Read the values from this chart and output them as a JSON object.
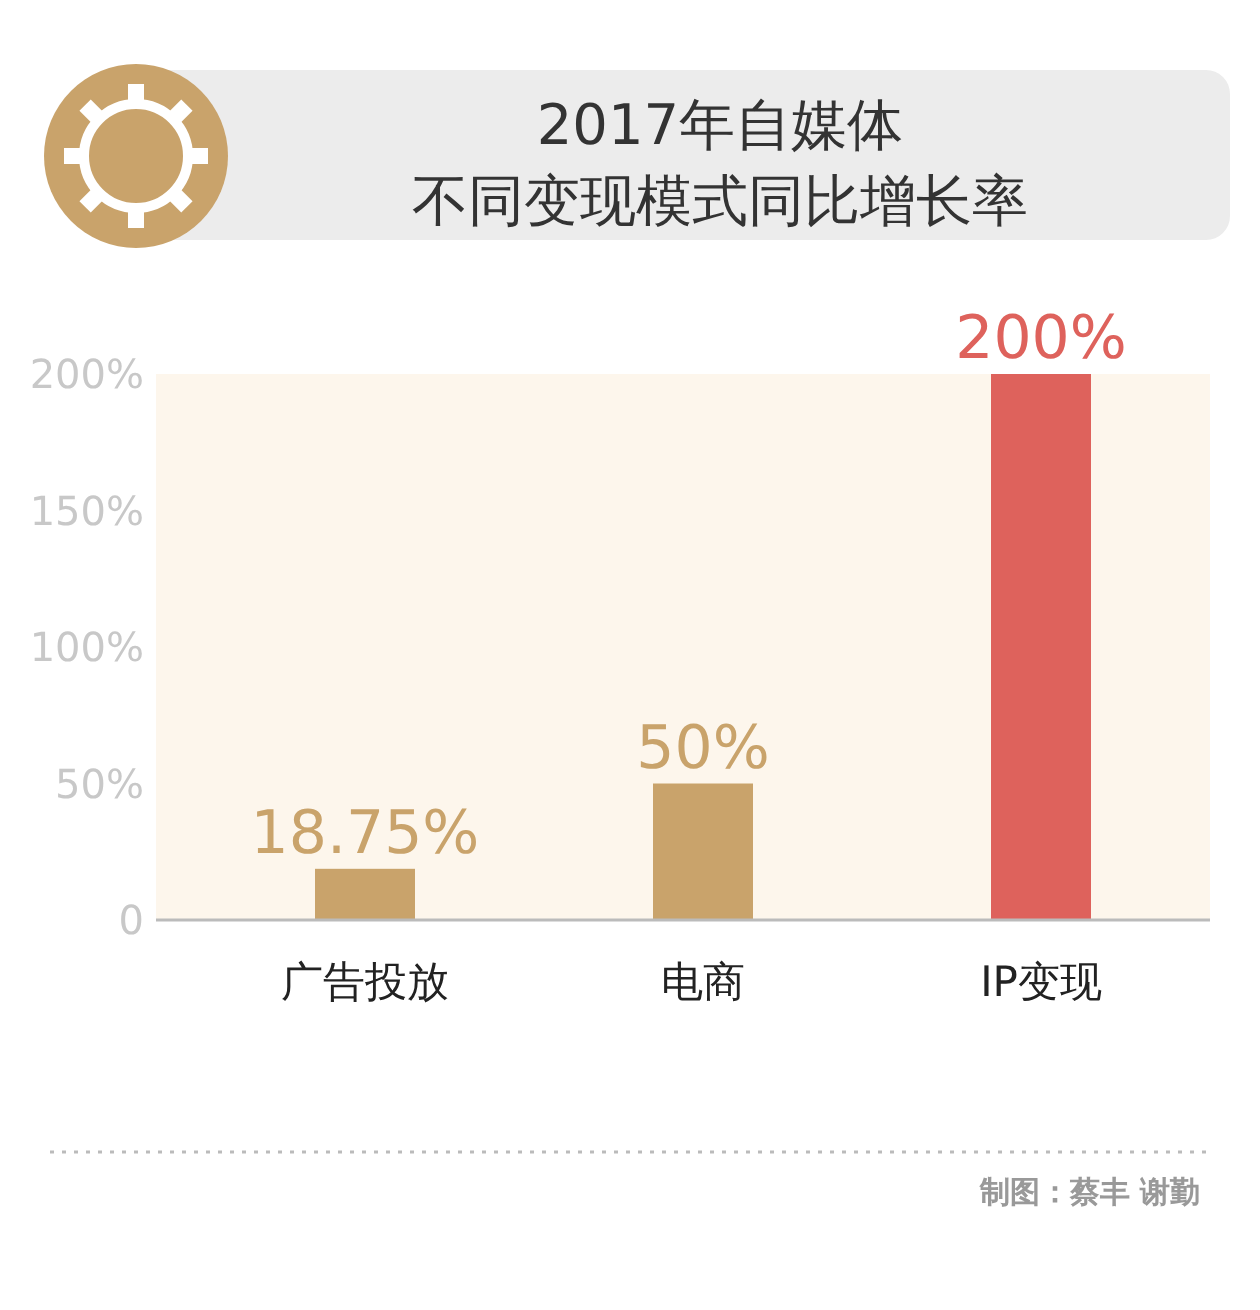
{
  "chart_data": {
    "type": "bar",
    "title": "2017年自媒体",
    "subtitle": "不同变现模式同比增长率",
    "categories": [
      "广告投放",
      "电商",
      "IP变现"
    ],
    "values": [
      18.75,
      50,
      200
    ],
    "colors": [
      "#c9a36b",
      "#c9a36b",
      "#de625c"
    ],
    "value_labels": [
      "18.75%",
      "50%",
      "200%"
    ],
    "ylim": [
      0,
      200
    ],
    "yticks": [
      0,
      {
        "value": 50,
        "label": "50%"
      },
      {
        "value": 100,
        "label": "100%"
      },
      {
        "value": 150,
        "label": "150%"
      },
      {
        "value": 200,
        "label": "200%"
      }
    ],
    "annotations": [
      "制图：蔡丰 谢勤"
    ]
  }
}
